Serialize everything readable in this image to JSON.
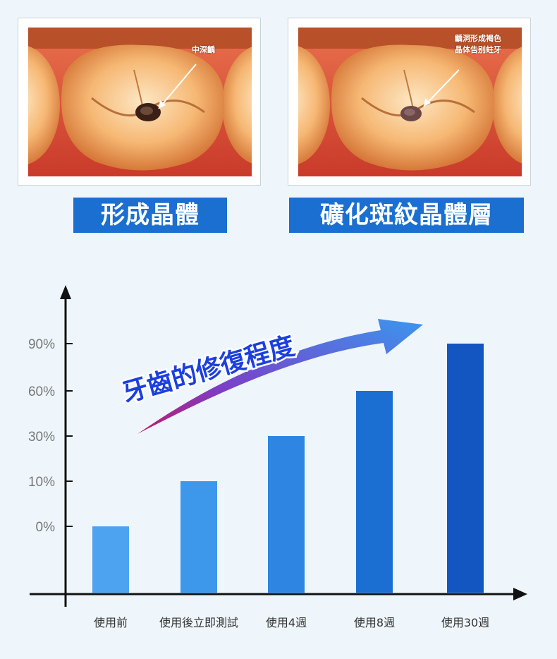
{
  "panels": [
    {
      "label": "中深齲",
      "caption": "形成晶體"
    },
    {
      "label_line1": "齲洞形成褐色",
      "label_line2": "晶体告别蛀牙",
      "caption": "礦化斑紋晶體層"
    }
  ],
  "chart_data": {
    "type": "bar",
    "title": "牙齒的修復程度",
    "categories": [
      "使用前",
      "使用後立即測試",
      "使用4週",
      "使用8週",
      "使用30週"
    ],
    "values": [
      0,
      10,
      30,
      60,
      90
    ],
    "ytick_labels": [
      "0%",
      "10%",
      "30%",
      "60%",
      "90%"
    ],
    "bar_colors": [
      "#4da3ef",
      "#3d98ec",
      "#2f86e2",
      "#1b6fd3",
      "#1356c2"
    ],
    "xlabel": "",
    "ylabel": "",
    "grid": false
  }
}
